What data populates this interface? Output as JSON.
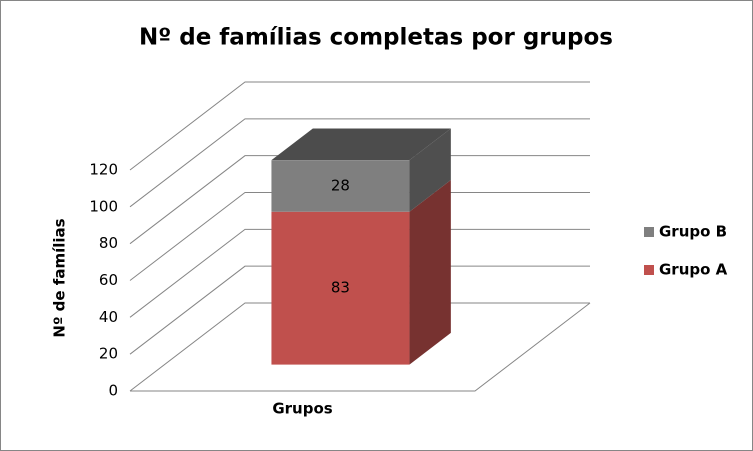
{
  "chart_data": {
    "type": "bar3d_stacked",
    "title": "Nº de famílias completas por grupos",
    "y_label": "Nº de famílias",
    "categories": [
      "Grupos"
    ],
    "series": [
      {
        "name": "Grupo A",
        "color": "#c0504d",
        "values": [
          83
        ]
      },
      {
        "name": "Grupo B",
        "color": "#7f7f7f",
        "values": [
          28
        ]
      }
    ],
    "ylim": [
      0,
      120
    ],
    "yticks": [
      0,
      20,
      40,
      60,
      80,
      100,
      120
    ],
    "grid": true,
    "legend": "right"
  }
}
